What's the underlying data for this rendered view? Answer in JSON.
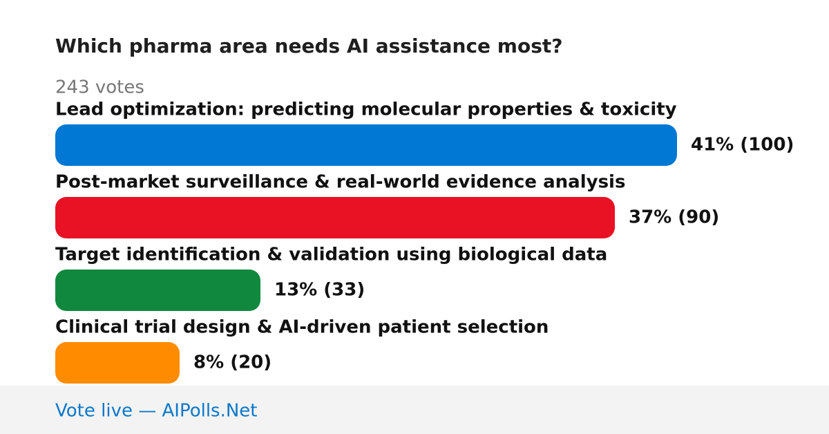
{
  "chart_data": {
    "type": "bar",
    "orientation": "horizontal",
    "title": "Which pharma area needs AI assistance most?",
    "subtitle": "243 votes",
    "footer": "Vote live — AIPolls.Net",
    "categories": [
      "Lead optimization: predicting molecular properties & toxicity",
      "Post-market surveillance & real-world evidence analysis",
      "Target identification & validation using biological data",
      "Clinical trial design & AI-driven patient selection"
    ],
    "values": [
      100,
      90,
      33,
      20
    ],
    "value_labels": [
      "41% (100)",
      "37% (90)",
      "13% (33)",
      "8% (20)"
    ],
    "colors": [
      "#0078d4",
      "#e81224",
      "#10893e",
      "#ff8c00"
    ]
  }
}
